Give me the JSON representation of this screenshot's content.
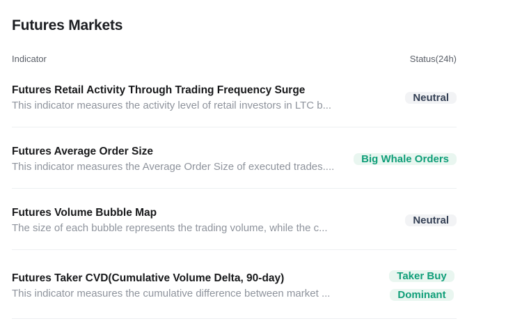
{
  "page": {
    "title": "Futures Markets"
  },
  "table": {
    "columns": {
      "indicator": "Indicator",
      "status": "Status(24h)"
    },
    "rows": [
      {
        "title": "Futures Retail Activity Through Trading Frequency Surge",
        "description": "This indicator measures the activity level of retail investors in LTC b...",
        "status": "Neutral",
        "status_type": "neutral"
      },
      {
        "title": "Futures Average Order Size",
        "description": "This indicator measures the Average Order Size of executed trades....",
        "status": "Big Whale Orders",
        "status_type": "positive"
      },
      {
        "title": "Futures Volume Bubble Map",
        "description": "The size of each bubble represents the trading volume, while the c...",
        "status": "Neutral",
        "status_type": "neutral"
      },
      {
        "title": "Futures Taker CVD(Cumulative Volume Delta, 90-day)",
        "description": "This indicator measures the cumulative difference between market ...",
        "status": "Taker Buy Dominant",
        "status_type": "positive"
      }
    ]
  },
  "colors": {
    "badge_neutral_bg": "#f2f3f5",
    "badge_neutral_text": "#333f54",
    "badge_positive_bg": "#e9f6f0",
    "badge_positive_text": "#0f9e78",
    "divider": "#edeff1",
    "description_text": "#8e939c",
    "column_header_text": "#585d66"
  }
}
